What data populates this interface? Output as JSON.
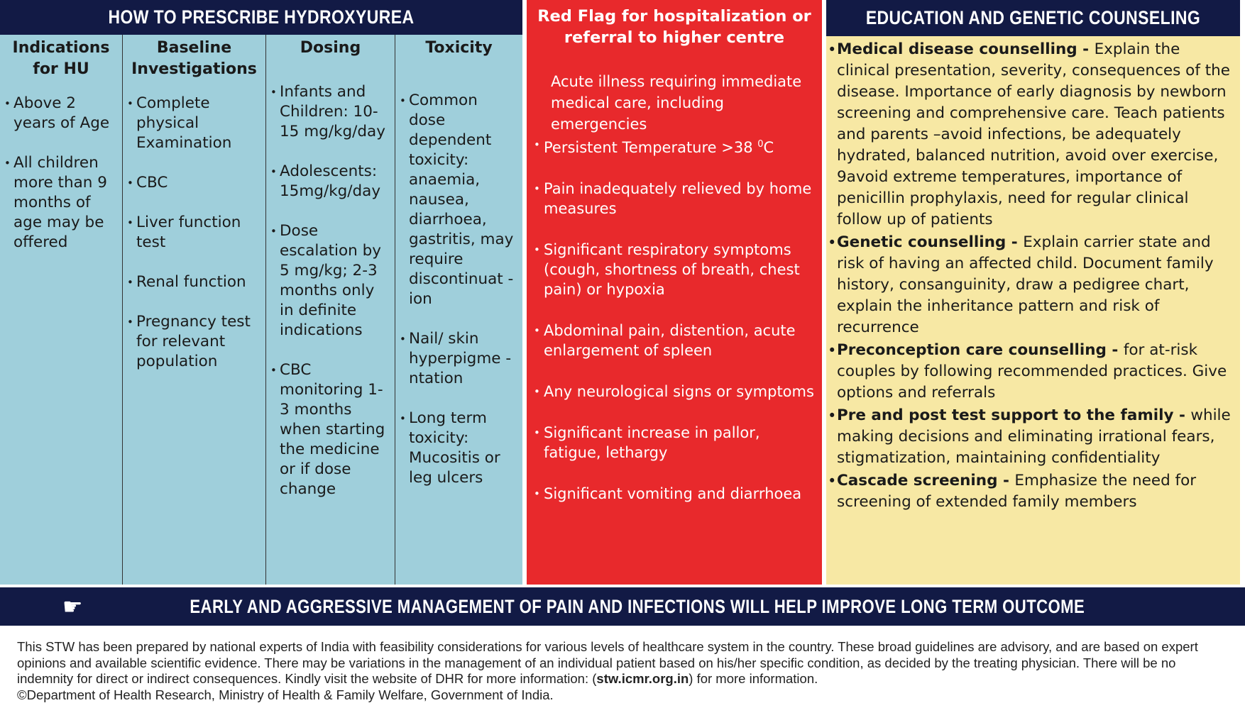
{
  "left": {
    "title": "HOW TO PRESCRIBE HYDROXYUREA",
    "columns": [
      {
        "heading": "Indications for HU",
        "items": [
          "Above 2 years of Age",
          "All children more than 9 months of age may be offered"
        ]
      },
      {
        "heading": "Baseline Investigations",
        "items": [
          "Complete physical Examination",
          "CBC",
          "Liver function test",
          "Renal function",
          "Pregnancy test for relevant population"
        ]
      },
      {
        "heading": "Dosing",
        "items": [
          "Infants and Children: 10-15 mg/kg/day",
          "Adolescents: 15mg/kg/day",
          "Dose escalation by 5 mg/kg; 2-3 months only in definite indications",
          "CBC monitoring 1-3 months when starting the medicine or if dose change"
        ]
      },
      {
        "heading": "Toxicity",
        "items": [
          "Common dose dependent toxicity: anaemia, nausea, diarrhoea, gastritis, may require discontinuat - ion",
          "Nail/ skin hyperpigme - ntation",
          "Long term toxicity: Mucositis or leg ulcers"
        ]
      }
    ]
  },
  "red": {
    "title": "Red Flag for hospitalization or referral to higher centre",
    "intro": "Acute illness requiring immediate medical care, including emergencies",
    "temp_text": "Persistent Temperature >38 ",
    "temp_sup": "0",
    "temp_unit": "C",
    "items": [
      "Pain inadequately relieved by home measures",
      "Significant respiratory symptoms (cough, shortness of breath, chest pain) or hypoxia",
      "Abdominal pain, distention, acute enlargement of spleen",
      "Any neurological signs or symptoms",
      "Significant increase in pallor, fatigue, lethargy",
      "Significant vomiting and diarrhoea"
    ]
  },
  "education": {
    "title": "EDUCATION AND GENETIC COUNSELING",
    "items": [
      {
        "term": "Medical disease counselling - ",
        "text": "Explain the clinical presentation, severity, consequences of the disease. Importance of early diagnosis by newborn screening and comprehensive care. Teach patients and parents –avoid infections, be adequately hydrated,  balanced nutrition,  avoid over exercise, 9avoid extreme temperatures, importance of penicillin prophylaxis, need for regular clinical follow up of patients"
      },
      {
        "term": "Genetic counselling - ",
        "text": "Explain carrier state and risk of having an affected child. Document family history, consanguinity, draw a pedigree chart, explain the inheritance pattern and risk of recurrence"
      },
      {
        "term": "Preconception care counselling - ",
        "text": "for at-risk couples by following recommended practices. Give options and referrals"
      },
      {
        "term": "Pre and post test support to the family - ",
        "text": "while making decisions and eliminating irrational fears, stigmatization, maintaining confidentiality"
      },
      {
        "term": "Cascade screening - ",
        "text": "Emphasize the need for screening of extended family members"
      }
    ]
  },
  "banner": {
    "icon": "pointing-hand-icon",
    "text": "EARLY AND AGGRESSIVE MANAGEMENT OF PAIN AND INFECTIONS WILL HELP IMPROVE LONG TERM OUTCOME"
  },
  "footer": {
    "text1": "This STW has been prepared by national experts of India with feasibility considerations for various levels of healthcare system in the country. These broad guidelines are advisory, and are based on expert opinions and available scientific evidence. There may be variations in the management of an individual patient based on his/her specific condition, as decided by the treating physician. There will be no indemnity for direct or indirect consequences. Kindly visit the website of DHR for more information: (",
    "link": "stw.icmr.org.in",
    "text2": ") for more information.",
    "copyright": "©Department of Health Research, Ministry of Health & Family Welfare, Government of India."
  },
  "colors": {
    "navy": "#121a45",
    "blue": "#9fcfdb",
    "red": "#e8292c",
    "yellow": "#f7e8a4"
  }
}
